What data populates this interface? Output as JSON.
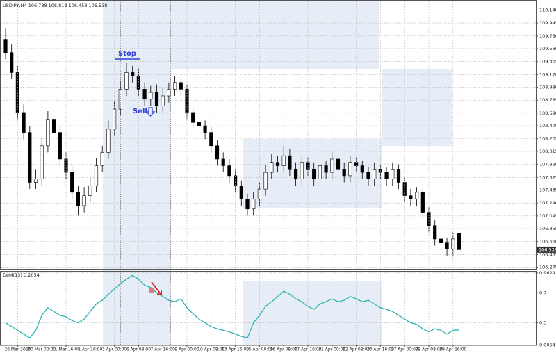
{
  "chart_data": [
    {
      "type": "candlestick",
      "title": "USDJPY,H4  106.788 106.818 106.458 106.538",
      "annotations": [
        "Stop",
        "Sell"
      ],
      "open": [
        109.7,
        109.5,
        109.2,
        108.6,
        108.3,
        107.55,
        107.6,
        108.1,
        108.5,
        108.3,
        107.9,
        107.7,
        107.4,
        107.2,
        107.35,
        107.5,
        107.8,
        108.0,
        108.35,
        108.65,
        108.95,
        109.2,
        109.15,
        108.95,
        108.8,
        108.9,
        108.7,
        108.85,
        108.95,
        109.05,
        108.95,
        108.6,
        108.45,
        108.4,
        108.3,
        108.1,
        107.9,
        107.8,
        107.65,
        107.5,
        107.3,
        107.15,
        107.3,
        107.45,
        107.7,
        107.85,
        107.8,
        107.95,
        107.75,
        107.6,
        107.85,
        107.75,
        107.6,
        107.8,
        107.7,
        107.9,
        107.75,
        107.65,
        107.85,
        107.8,
        107.7,
        107.6,
        107.75,
        107.7,
        107.6,
        107.75,
        107.55,
        107.35,
        107.3,
        107.4,
        107.1,
        106.9,
        106.7,
        106.65,
        106.55,
        106.788
      ],
      "high": [
        109.86,
        109.62,
        109.3,
        108.72,
        108.4,
        107.75,
        108.22,
        108.62,
        108.58,
        108.4,
        108.0,
        107.8,
        107.5,
        107.48,
        107.62,
        107.92,
        108.1,
        108.48,
        108.78,
        109.08,
        109.35,
        109.3,
        109.25,
        109.05,
        109.0,
        109.02,
        108.98,
        109.05,
        109.15,
        109.12,
        109.02,
        108.68,
        108.55,
        108.48,
        108.38,
        108.18,
        108.0,
        107.9,
        107.75,
        107.58,
        107.38,
        107.4,
        107.55,
        107.82,
        107.98,
        107.95,
        108.1,
        108.05,
        107.85,
        107.95,
        107.92,
        107.85,
        107.9,
        107.88,
        108.0,
        107.98,
        107.85,
        107.95,
        107.92,
        107.88,
        107.78,
        107.85,
        107.82,
        107.78,
        107.85,
        107.82,
        107.62,
        107.45,
        107.48,
        107.45,
        107.18,
        106.98,
        106.78,
        106.72,
        106.8,
        106.818
      ],
      "low": [
        109.4,
        109.1,
        108.5,
        108.2,
        107.45,
        107.45,
        107.5,
        108.0,
        108.2,
        107.8,
        107.6,
        107.3,
        107.05,
        107.1,
        107.25,
        107.4,
        107.7,
        107.9,
        108.25,
        108.55,
        108.85,
        109.05,
        108.85,
        108.7,
        108.7,
        108.6,
        108.6,
        108.75,
        108.85,
        108.85,
        108.5,
        108.35,
        108.3,
        108.2,
        108.0,
        107.8,
        107.7,
        107.55,
        107.4,
        107.2,
        107.05,
        107.05,
        107.2,
        107.35,
        107.6,
        107.7,
        107.7,
        107.65,
        107.5,
        107.5,
        107.65,
        107.5,
        107.5,
        107.6,
        107.6,
        107.65,
        107.55,
        107.55,
        107.7,
        107.6,
        107.5,
        107.5,
        107.6,
        107.5,
        107.5,
        107.45,
        107.25,
        107.2,
        107.2,
        107.0,
        106.8,
        106.6,
        106.55,
        106.45,
        106.45,
        106.458
      ],
      "close": [
        109.5,
        109.2,
        108.6,
        108.3,
        107.55,
        107.6,
        108.1,
        108.5,
        108.3,
        107.9,
        107.7,
        107.4,
        107.2,
        107.35,
        107.5,
        107.8,
        108.0,
        108.35,
        108.65,
        108.95,
        109.2,
        109.15,
        108.95,
        108.8,
        108.9,
        108.7,
        108.85,
        108.95,
        109.05,
        108.95,
        108.6,
        108.45,
        108.4,
        108.3,
        108.1,
        107.9,
        107.8,
        107.65,
        107.5,
        107.3,
        107.15,
        107.3,
        107.45,
        107.7,
        107.85,
        107.8,
        107.95,
        107.75,
        107.6,
        107.85,
        107.75,
        107.6,
        107.8,
        107.7,
        107.9,
        107.75,
        107.65,
        107.85,
        107.8,
        107.7,
        107.6,
        107.75,
        107.7,
        107.6,
        107.75,
        107.55,
        107.35,
        107.3,
        107.4,
        107.1,
        106.9,
        106.7,
        106.65,
        106.55,
        106.7,
        106.538
      ],
      "up_color": "#ffffff",
      "down_color": "#000000",
      "grid": true,
      "ylim": [
        106.25,
        110.28
      ],
      "yticks": [
        {
          "value": 110.14,
          "label": "110.140"
        },
        {
          "value": 109.945,
          "label": "109.945"
        },
        {
          "value": 109.75,
          "label": "109.750"
        },
        {
          "value": 109.56,
          "label": "109.560"
        },
        {
          "value": 109.365,
          "label": "109.365"
        },
        {
          "value": 109.17,
          "label": "109.170"
        },
        {
          "value": 108.98,
          "label": "108.980"
        },
        {
          "value": 108.785,
          "label": "108.785"
        },
        {
          "value": 108.59,
          "label": "108.590"
        },
        {
          "value": 108.4,
          "label": "108.400"
        },
        {
          "value": 108.205,
          "label": "108.205"
        },
        {
          "value": 108.015,
          "label": "108.015"
        },
        {
          "value": 107.82,
          "label": "107.820"
        },
        {
          "value": 107.625,
          "label": "107.625"
        },
        {
          "value": 107.435,
          "label": "107.435"
        },
        {
          "value": 107.24,
          "label": "107.240"
        },
        {
          "value": 107.045,
          "label": "107.045"
        },
        {
          "value": 106.855,
          "label": "106.855"
        },
        {
          "value": 106.66,
          "label": "106.660"
        },
        {
          "value": 106.465,
          "label": "106.465"
        },
        {
          "value": 106.275,
          "label": "106.275"
        }
      ]
    },
    {
      "type": "line",
      "title": "DeM(13) 0.2054",
      "color": "#2bb3b0",
      "grid": true,
      "categories": [
        null,
        null,
        "26 Mar 2020",
        null,
        null,
        null,
        "30 Mar 00:00",
        null,
        null,
        null,
        "31 Mar 16:00",
        null,
        null,
        null,
        "1 Apr 16:00",
        null,
        null,
        null,
        "3 Apr 00:00",
        null,
        null,
        null,
        "6 Apr 08:00",
        null,
        null,
        null,
        "7 Apr 16:00",
        null,
        null,
        null,
        "9 Apr 00:00",
        null,
        null,
        null,
        "10 Apr 08:00",
        null,
        null,
        null,
        "13 Apr 16:00",
        null,
        null,
        null,
        "15 Apr 00:00",
        null,
        null,
        null,
        "16 Apr 08:00",
        null,
        null,
        null,
        "17 Apr 16:00",
        null,
        null,
        null,
        "21 Apr 00:00",
        null,
        null,
        null,
        "22 Apr 08:00",
        null,
        null,
        null,
        "23 Apr 16:00",
        null,
        null,
        null,
        "27 Apr 00:00",
        null,
        null,
        null,
        "28 Apr 08:00",
        null,
        null,
        null,
        "29 Apr 16:00",
        null
      ],
      "values": [
        0.3,
        0.25,
        0.2,
        0.15,
        0.1,
        0.2,
        0.4,
        0.5,
        0.45,
        0.4,
        0.38,
        0.33,
        0.3,
        0.35,
        0.45,
        0.55,
        0.6,
        0.68,
        0.75,
        0.82,
        0.88,
        0.93,
        0.88,
        0.8,
        0.77,
        0.7,
        0.65,
        0.6,
        0.58,
        0.62,
        0.5,
        0.42,
        0.35,
        0.3,
        0.25,
        0.22,
        0.2,
        0.18,
        0.15,
        0.12,
        0.1,
        0.3,
        0.4,
        0.52,
        0.58,
        0.65,
        0.72,
        0.68,
        0.62,
        0.58,
        0.52,
        0.48,
        0.55,
        0.58,
        0.62,
        0.58,
        0.6,
        0.65,
        0.62,
        0.58,
        0.6,
        0.55,
        0.5,
        0.48,
        0.45,
        0.4,
        0.35,
        0.3,
        0.28,
        0.22,
        0.18,
        0.22,
        0.2,
        0.15,
        0.2,
        0.2054
      ],
      "ylim": [
        0,
        0.98
      ],
      "yticks": [
        0.9629,
        0.7,
        0.3,
        0.0054
      ]
    }
  ]
}
